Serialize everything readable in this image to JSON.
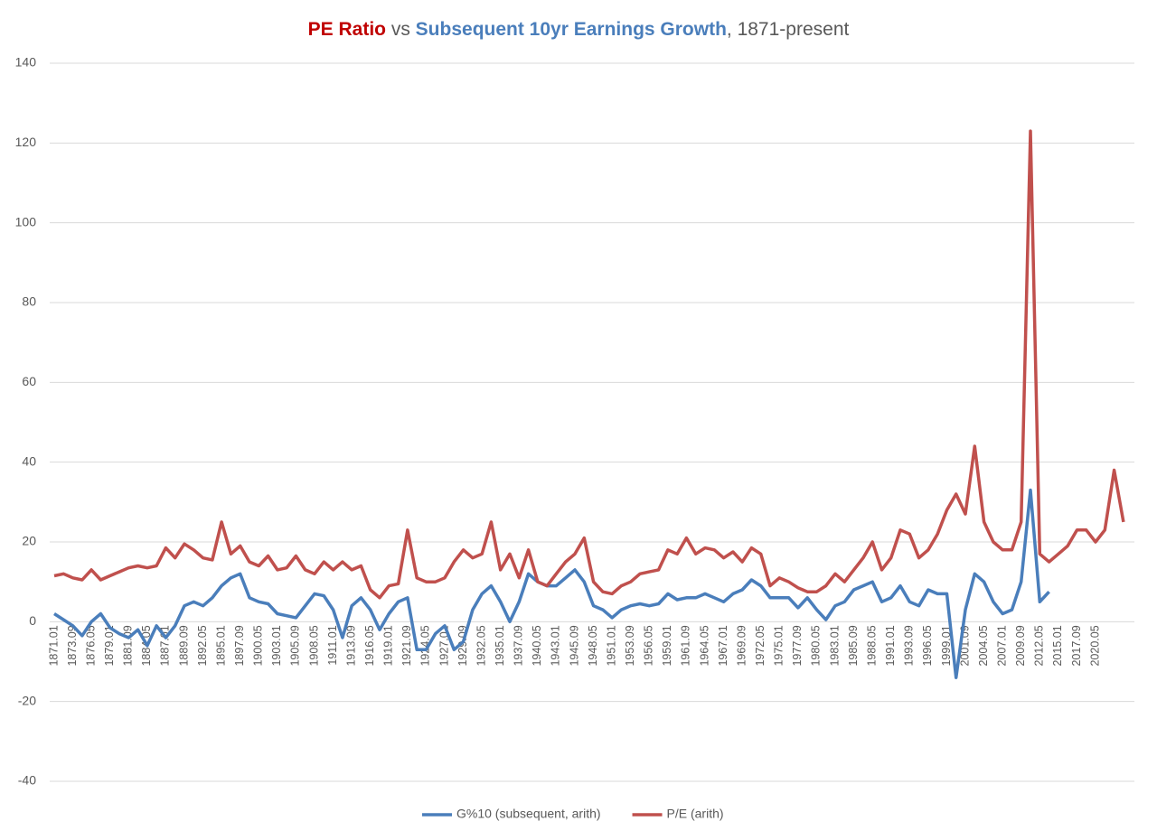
{
  "chart_data": {
    "type": "line",
    "title_parts": [
      {
        "text": "PE Ratio",
        "color": "#c00000",
        "bold": true
      },
      {
        "text": " vs ",
        "color": "#595959",
        "bold": false
      },
      {
        "text": "Subsequent 10yr Earnings Growth",
        "color": "#4a7ebb",
        "bold": true
      },
      {
        "text": ", 1871-present",
        "color": "#595959",
        "bold": false
      }
    ],
    "categories": [
      "1871.01",
      null,
      "1873.09",
      null,
      "1876.05",
      null,
      "1879.01",
      null,
      "1881.09",
      null,
      "1884.05",
      null,
      "1887.01",
      null,
      "1889.09",
      null,
      "1892.05",
      null,
      "1895.01",
      null,
      "1897.09",
      null,
      "1900.05",
      null,
      "1903.01",
      null,
      "1905.09",
      null,
      "1908.05",
      null,
      "1911.01",
      null,
      "1913.09",
      null,
      "1916.05",
      null,
      "1919.01",
      null,
      "1921.09",
      null,
      "1924.05",
      null,
      "1927.01",
      null,
      "1929.09",
      null,
      "1932.05",
      null,
      "1935.01",
      null,
      "1937.09",
      null,
      "1940.05",
      null,
      "1943.01",
      null,
      "1945.09",
      null,
      "1948.05",
      null,
      "1951.01",
      null,
      "1953.09",
      null,
      "1956.05",
      null,
      "1959.01",
      null,
      "1961.09",
      null,
      "1964.05",
      null,
      "1967.01",
      null,
      "1969.09",
      null,
      "1972.05",
      null,
      "1975.01",
      null,
      "1977.09",
      null,
      "1980.05",
      null,
      "1983.01",
      null,
      "1985.09",
      null,
      "1988.05",
      null,
      "1991.01",
      null,
      "1993.09",
      null,
      "1996.05",
      null,
      "1999.01",
      null,
      "2001.09",
      null,
      "2004.05",
      null,
      "2007.01",
      null,
      "2009.09",
      null,
      "2012.05",
      null,
      "2015.01",
      null,
      "2017.09",
      null,
      "2020.05",
      null,
      null,
      null
    ],
    "series": [
      {
        "name": "G%10 (subsequent, arith)",
        "color": "#4a7ebb",
        "values": [
          2,
          0.5,
          -1,
          -3.5,
          0,
          2,
          -1.5,
          -3,
          -4,
          -2,
          -6,
          -1,
          -4,
          -1,
          4,
          5,
          4,
          6,
          9,
          11,
          12,
          6,
          5,
          4.5,
          2,
          1.5,
          1,
          4,
          7,
          6.5,
          3,
          -4,
          4,
          6,
          3,
          -2,
          2,
          5,
          6,
          -7,
          -7,
          -3,
          -1,
          -7,
          -5,
          3,
          7,
          9,
          5,
          0,
          5,
          12,
          10,
          9,
          9,
          11,
          13,
          10,
          4,
          3,
          1,
          3,
          4,
          4.5,
          4,
          4.5,
          7,
          5.5,
          6,
          6,
          7,
          6,
          5,
          7,
          8,
          10.5,
          9,
          6,
          6,
          6,
          3.5,
          6,
          3,
          0.5,
          4,
          5,
          8,
          9,
          10,
          5,
          6,
          9,
          5,
          4,
          8,
          7,
          7,
          -14,
          3,
          12,
          10,
          5,
          2,
          3,
          10,
          33,
          5,
          7.5,
          null,
          null,
          null,
          null,
          null,
          null,
          null,
          null
        ]
      },
      {
        "name": "P/E (arith)",
        "color": "#c0504d",
        "values": [
          11.5,
          12,
          11,
          10.5,
          13,
          10.5,
          11.5,
          12.5,
          13.5,
          14,
          13.5,
          14,
          18.5,
          16,
          19.5,
          18,
          16,
          15.5,
          25,
          17,
          19,
          15,
          14,
          16.5,
          13,
          13.5,
          16.5,
          13,
          12,
          15,
          13,
          15,
          13,
          14,
          8,
          6,
          9,
          9.5,
          23,
          11,
          10,
          10,
          11,
          15,
          18,
          16,
          17,
          25,
          13,
          17,
          11,
          18,
          10,
          9,
          12,
          15,
          17,
          21,
          10,
          7.5,
          7,
          9,
          10,
          12,
          12.5,
          13,
          18,
          17,
          21,
          17,
          18.5,
          18,
          16,
          17.5,
          15,
          18.5,
          17,
          9,
          11,
          10,
          8.5,
          7.5,
          7.5,
          9,
          12,
          10,
          13,
          16,
          20,
          13,
          16,
          23,
          22,
          16,
          18,
          22,
          28,
          32,
          27,
          44,
          25,
          20,
          18,
          18,
          25,
          123,
          17,
          15,
          17,
          19,
          23,
          23,
          20,
          23,
          38,
          25
        ]
      }
    ],
    "ylim": [
      -40,
      140
    ],
    "yticks": [
      -40,
      -20,
      0,
      20,
      40,
      60,
      80,
      100,
      120,
      140
    ],
    "grid": true,
    "legend": "bottom"
  }
}
